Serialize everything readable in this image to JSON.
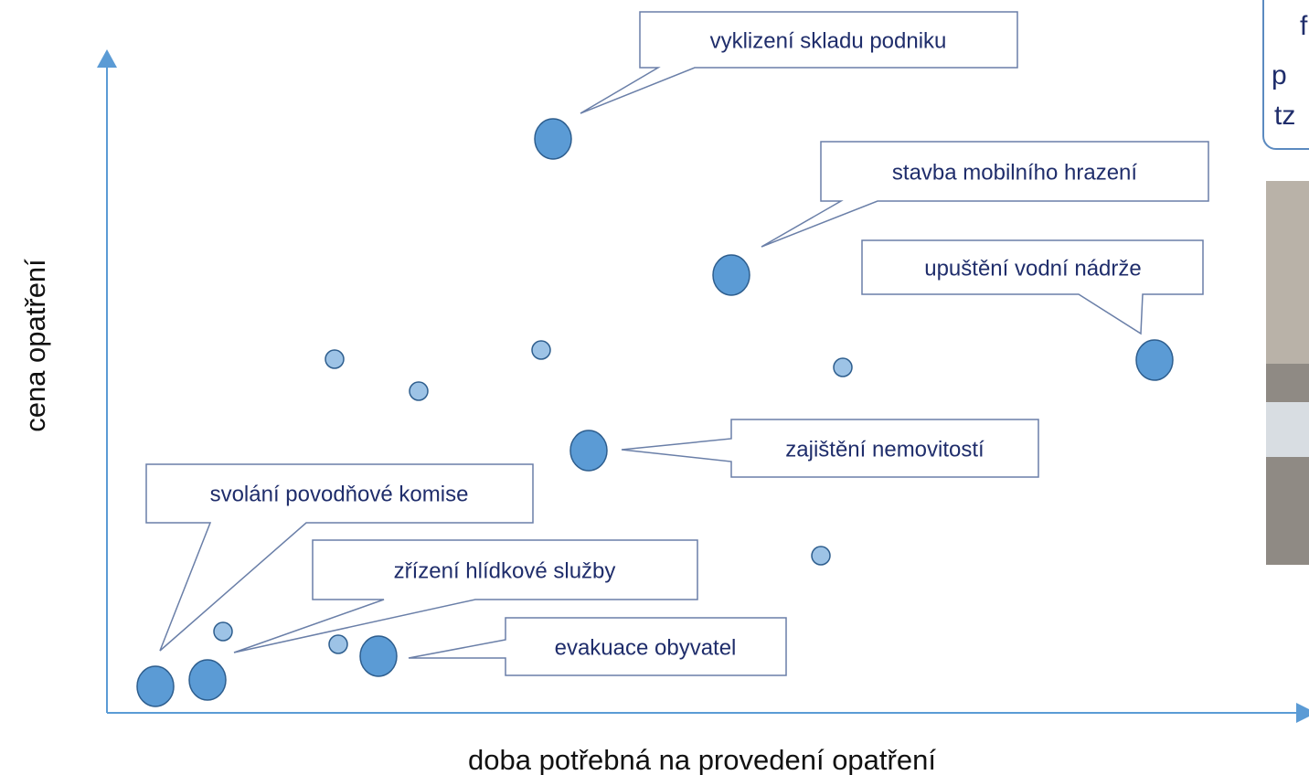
{
  "axes": {
    "x_label": "doba potřebná na provedení opatření",
    "y_label": "cena opatření"
  },
  "callouts": [
    "vyklizení skladu podniku",
    "stavba mobilního hrazení",
    "upuštění vodní nádrže",
    "zajištění nemovitostí",
    "svolání povodňové komise",
    "zřízení hlídkové služby",
    "evakuace obyvatel"
  ],
  "side_box": {
    "lines": [
      "f",
      "p",
      "tz"
    ]
  }
}
